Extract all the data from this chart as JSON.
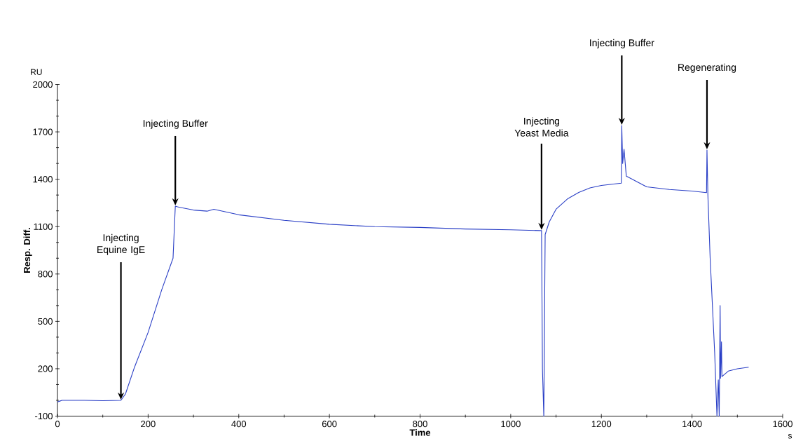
{
  "chart_data": {
    "type": "line",
    "xlabel": "Time",
    "ylabel": "Resp. Diff.",
    "x": [
      0,
      5,
      10,
      60,
      100,
      140,
      150,
      170,
      200,
      230,
      255,
      260,
      265,
      300,
      330,
      345,
      400,
      500,
      600,
      700,
      800,
      900,
      1000,
      1065,
      1068,
      1070,
      1073,
      1076,
      1085,
      1100,
      1125,
      1150,
      1175,
      1200,
      1244,
      1245,
      1247,
      1250,
      1255,
      1275,
      1300,
      1350,
      1400,
      1432,
      1433,
      1435,
      1440,
      1450,
      1455,
      1458,
      1460,
      1462,
      1463,
      1465,
      1466,
      1470,
      1480,
      1500,
      1525
    ],
    "series": [
      {
        "color": "#2a3fc6",
        "values": [
          -10,
          -5,
          0,
          0,
          -2,
          0,
          40,
          210,
          430,
          700,
          900,
          1230,
          1225,
          1205,
          1198,
          1210,
          1175,
          1140,
          1115,
          1100,
          1095,
          1085,
          1080,
          1075,
          1075,
          200,
          -100,
          1050,
          1130,
          1210,
          1275,
          1316,
          1345,
          1361,
          1375,
          1740,
          1500,
          1590,
          1420,
          1390,
          1352,
          1335,
          1325,
          1315,
          1585,
          1300,
          900,
          300,
          -100,
          130,
          -100,
          600,
          140,
          370,
          150,
          160,
          185,
          200,
          210
        ]
      }
    ],
    "xlim": [
      0,
      1600
    ],
    "ylim": [
      -100,
      2000
    ],
    "xticks": [
      0,
      200,
      400,
      600,
      800,
      1000,
      1200,
      1400,
      1600
    ],
    "yticks": [
      -100,
      200,
      500,
      800,
      1100,
      1400,
      1700,
      2000
    ],
    "grid": false,
    "marker": "none",
    "line_style": "solid",
    "annotations": [
      {
        "text": "Injecting Equine IgE",
        "x": 140,
        "y": 0
      },
      {
        "text": "Injecting Buffer",
        "x": 260,
        "y": 1230
      },
      {
        "text": "Injecting Yeast Media",
        "x": 1068,
        "y": 1075
      },
      {
        "text": "Injecting Buffer",
        "x": 1245,
        "y": 1740
      },
      {
        "text": "Regenerating",
        "x": 1433,
        "y": 1585
      },
      "RU",
      "s"
    ]
  }
}
